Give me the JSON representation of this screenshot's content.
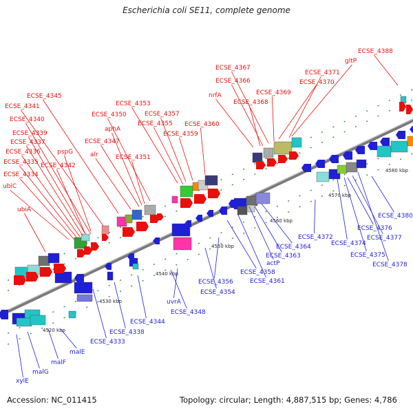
{
  "title": "Escherichia coli SE11, complete genome",
  "footer": {
    "accession": "Accession: NC_011415",
    "summary": "Topology: circular; Length: 4,887,515 bp; Genes: 4,786"
  },
  "colors": {
    "forward_strand": "#e8100c",
    "reverse_strand": "#1f1fd6",
    "backbone": "#7a7a7a",
    "tick": "#2e8b2e"
  },
  "kbp_marks": [
    "4520 kbp",
    "4530 kbp",
    "4540 kbp",
    "4550 kbp",
    "4560 kbp",
    "4570 kbp",
    "4580 kbp"
  ],
  "labels_top": [
    "ECSE_4388",
    "gltP",
    "ECSE_4371",
    "ECSE_4370",
    "ECSE_4369",
    "ECSE_4367",
    "ECSE_4366",
    "ECSE_4368",
    "nrfA",
    "ECSE_4345",
    "ECSE_4341",
    "ECSE_4340",
    "ECSE_4339",
    "ECSE_4337",
    "ECSE_4336",
    "ECSE_4335",
    "ECSE_4334",
    "pspG",
    "ECSE_4342",
    "ubiC",
    "ubiA",
    "ECSE_4353",
    "ECSE_4350",
    "ECSE_4357",
    "ECSE_4355",
    "aphA",
    "ECSE_4347",
    "ECSE_4359",
    "ECSE_4360",
    "alr",
    "ECSE_4351"
  ],
  "labels_bottom": [
    "ECSE_4380",
    "ECSE_4376",
    "ECSE_4377",
    "ECSE_4374",
    "ECSE_4375",
    "ECSE_4378",
    "ECSE_4372",
    "ECSE_4364",
    "ECSE_4363",
    "actP",
    "ECSE_4361",
    "ECSE_4358",
    "ECSE_4356",
    "ECSE_4354",
    "uvrA",
    "ECSE_4348",
    "ECSE_4344",
    "ECSE_4338",
    "ECSE_4333",
    "malE",
    "malF",
    "malG",
    "xylE"
  ]
}
